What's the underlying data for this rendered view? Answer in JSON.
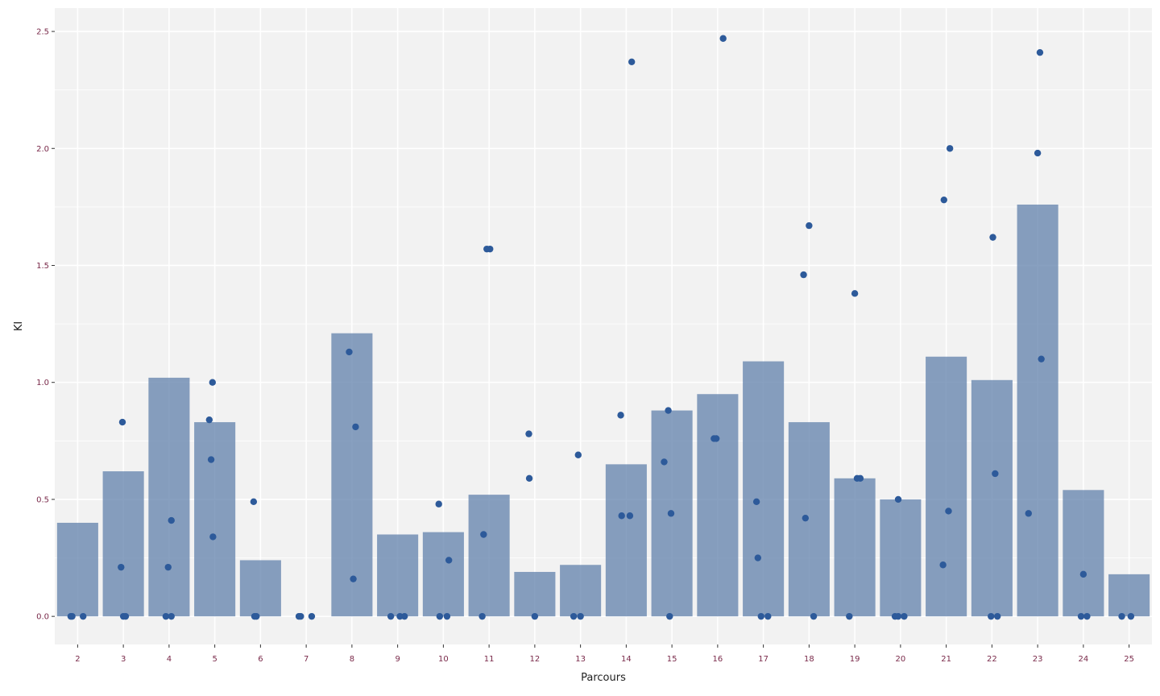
{
  "chart_data": {
    "type": "bar",
    "xlabel": "Parcours",
    "ylabel": "KI",
    "ylim": [
      -0.12,
      2.6
    ],
    "yticks": [
      0.0,
      0.5,
      1.0,
      1.5,
      2.0,
      2.5
    ],
    "ytick_labels": [
      "0.0",
      "0.5",
      "1.0",
      "1.5",
      "2.0",
      "2.5"
    ],
    "grid": true,
    "categories": [
      "2",
      "3",
      "4",
      "5",
      "6",
      "7",
      "8",
      "9",
      "10",
      "11",
      "12",
      "13",
      "14",
      "15",
      "16",
      "17",
      "18",
      "19",
      "20",
      "21",
      "22",
      "23",
      "24",
      "25"
    ],
    "values": [
      0.4,
      0.62,
      1.02,
      0.83,
      0.24,
      0.0,
      1.21,
      0.35,
      0.36,
      0.52,
      0.19,
      0.22,
      0.65,
      0.88,
      0.95,
      1.09,
      0.83,
      0.59,
      0.5,
      1.11,
      1.01,
      1.76,
      0.54,
      0.18
    ],
    "points": [
      {
        "category": "2",
        "offset": -0.15,
        "value": 0.0
      },
      {
        "category": "2",
        "offset": -0.12,
        "value": 0.0
      },
      {
        "category": "2",
        "offset": 0.12,
        "value": 0.0
      },
      {
        "category": "3",
        "offset": -0.05,
        "value": 0.21
      },
      {
        "category": "3",
        "offset": -0.02,
        "value": 0.83
      },
      {
        "category": "3",
        "offset": 0.0,
        "value": 0.0
      },
      {
        "category": "3",
        "offset": 0.05,
        "value": 0.0
      },
      {
        "category": "4",
        "offset": -0.07,
        "value": 0.0
      },
      {
        "category": "4",
        "offset": -0.02,
        "value": 0.21
      },
      {
        "category": "4",
        "offset": 0.05,
        "value": 0.0
      },
      {
        "category": "4",
        "offset": 0.05,
        "value": 0.41
      },
      {
        "category": "5",
        "offset": -0.12,
        "value": 0.84
      },
      {
        "category": "5",
        "offset": -0.08,
        "value": 0.67
      },
      {
        "category": "5",
        "offset": -0.05,
        "value": 1.0
      },
      {
        "category": "5",
        "offset": -0.04,
        "value": 0.34
      },
      {
        "category": "6",
        "offset": -0.15,
        "value": 0.49
      },
      {
        "category": "6",
        "offset": -0.13,
        "value": 0.0
      },
      {
        "category": "6",
        "offset": -0.09,
        "value": 0.0
      },
      {
        "category": "7",
        "offset": -0.16,
        "value": 0.0
      },
      {
        "category": "7",
        "offset": -0.12,
        "value": 0.0
      },
      {
        "category": "7",
        "offset": 0.12,
        "value": 0.0
      },
      {
        "category": "8",
        "offset": -0.06,
        "value": 1.13
      },
      {
        "category": "8",
        "offset": 0.03,
        "value": 0.16
      },
      {
        "category": "8",
        "offset": 0.08,
        "value": 0.81
      },
      {
        "category": "9",
        "offset": -0.15,
        "value": 0.0
      },
      {
        "category": "9",
        "offset": 0.05,
        "value": 0.0
      },
      {
        "category": "9",
        "offset": 0.15,
        "value": 0.0
      },
      {
        "category": "10",
        "offset": -0.1,
        "value": 0.48
      },
      {
        "category": "10",
        "offset": -0.08,
        "value": 0.0
      },
      {
        "category": "10",
        "offset": 0.08,
        "value": 0.0
      },
      {
        "category": "10",
        "offset": 0.12,
        "value": 0.24
      },
      {
        "category": "11",
        "offset": -0.15,
        "value": 0.0
      },
      {
        "category": "11",
        "offset": -0.12,
        "value": 0.35
      },
      {
        "category": "11",
        "offset": -0.05,
        "value": 1.57
      },
      {
        "category": "11",
        "offset": 0.02,
        "value": 1.57
      },
      {
        "category": "12",
        "offset": -0.13,
        "value": 0.78
      },
      {
        "category": "12",
        "offset": -0.12,
        "value": 0.59
      },
      {
        "category": "12",
        "offset": 0.0,
        "value": 0.0
      },
      {
        "category": "13",
        "offset": -0.15,
        "value": 0.0
      },
      {
        "category": "13",
        "offset": -0.05,
        "value": 0.69
      },
      {
        "category": "13",
        "offset": 0.0,
        "value": 0.0
      },
      {
        "category": "14",
        "offset": -0.12,
        "value": 0.86
      },
      {
        "category": "14",
        "offset": -0.1,
        "value": 0.43
      },
      {
        "category": "14",
        "offset": 0.08,
        "value": 0.43
      },
      {
        "category": "14",
        "offset": 0.12,
        "value": 2.37
      },
      {
        "category": "15",
        "offset": -0.17,
        "value": 0.66
      },
      {
        "category": "15",
        "offset": -0.08,
        "value": 0.88
      },
      {
        "category": "15",
        "offset": -0.05,
        "value": 0.0
      },
      {
        "category": "15",
        "offset": -0.02,
        "value": 0.44
      },
      {
        "category": "16",
        "offset": -0.08,
        "value": 0.76
      },
      {
        "category": "16",
        "offset": -0.03,
        "value": 0.76
      },
      {
        "category": "16",
        "offset": 0.12,
        "value": 2.47
      },
      {
        "category": "17",
        "offset": -0.15,
        "value": 0.49
      },
      {
        "category": "17",
        "offset": -0.12,
        "value": 0.25
      },
      {
        "category": "17",
        "offset": -0.05,
        "value": 0.0
      },
      {
        "category": "17",
        "offset": 0.1,
        "value": 0.0
      },
      {
        "category": "18",
        "offset": -0.12,
        "value": 1.46
      },
      {
        "category": "18",
        "offset": -0.08,
        "value": 0.42
      },
      {
        "category": "18",
        "offset": 0.0,
        "value": 1.67
      },
      {
        "category": "18",
        "offset": 0.1,
        "value": 0.0
      },
      {
        "category": "19",
        "offset": -0.12,
        "value": 0.0
      },
      {
        "category": "19",
        "offset": 0.0,
        "value": 1.38
      },
      {
        "category": "19",
        "offset": 0.05,
        "value": 0.59
      },
      {
        "category": "19",
        "offset": 0.12,
        "value": 0.59
      },
      {
        "category": "20",
        "offset": -0.12,
        "value": 0.0
      },
      {
        "category": "20",
        "offset": -0.05,
        "value": 0.0
      },
      {
        "category": "20",
        "offset": -0.05,
        "value": 0.5
      },
      {
        "category": "20",
        "offset": 0.08,
        "value": 0.0
      },
      {
        "category": "21",
        "offset": -0.07,
        "value": 0.22
      },
      {
        "category": "21",
        "offset": -0.05,
        "value": 1.78
      },
      {
        "category": "21",
        "offset": 0.05,
        "value": 0.45
      },
      {
        "category": "21",
        "offset": 0.08,
        "value": 2.0
      },
      {
        "category": "22",
        "offset": -0.02,
        "value": 0.0
      },
      {
        "category": "22",
        "offset": 0.02,
        "value": 1.62
      },
      {
        "category": "22",
        "offset": 0.07,
        "value": 0.61
      },
      {
        "category": "22",
        "offset": 0.12,
        "value": 0.0
      },
      {
        "category": "23",
        "offset": -0.2,
        "value": 0.44
      },
      {
        "category": "23",
        "offset": 0.0,
        "value": 1.98
      },
      {
        "category": "23",
        "offset": 0.05,
        "value": 2.41
      },
      {
        "category": "23",
        "offset": 0.08,
        "value": 1.1
      },
      {
        "category": "24",
        "offset": -0.05,
        "value": 0.0
      },
      {
        "category": "24",
        "offset": 0.0,
        "value": 0.18
      },
      {
        "category": "24",
        "offset": 0.08,
        "value": 0.0
      },
      {
        "category": "25",
        "offset": -0.16,
        "value": 0.0
      },
      {
        "category": "25",
        "offset": 0.04,
        "value": 0.0
      }
    ],
    "colors": {
      "bar": "#5a7ca8",
      "point": "#2d5a9a",
      "panel": "#f2f2f2",
      "grid": "#ffffff",
      "tick_label": "#7a2a4a"
    }
  }
}
